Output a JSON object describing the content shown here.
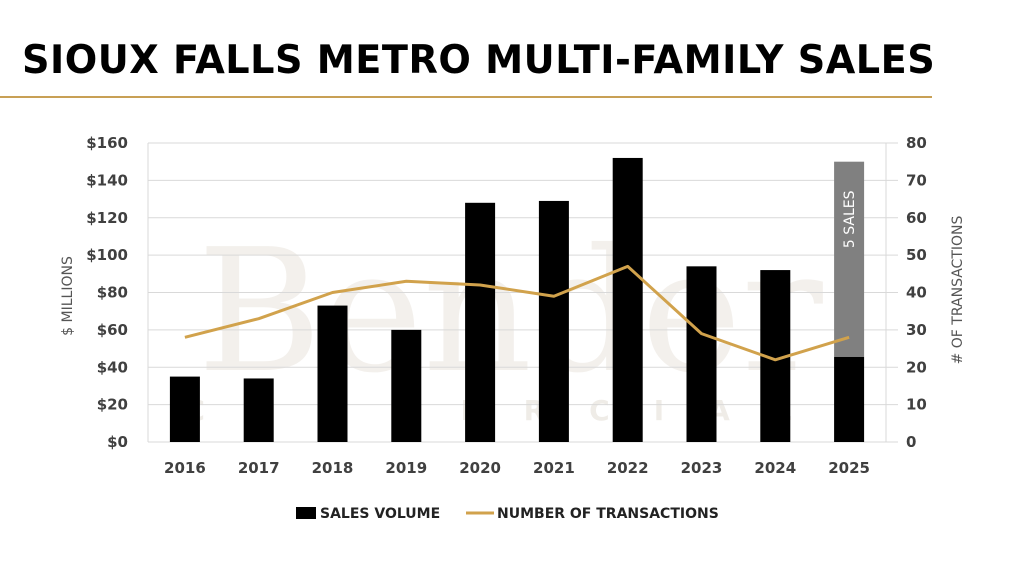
{
  "title": "SIOUX FALLS METRO MULTI-FAMILY SALES",
  "watermark": {
    "line1": "Bender",
    "line2": "COMMERCIAL"
  },
  "colors": {
    "bars": "#000000",
    "partial_bar": "#808080",
    "line": "#d1a24c",
    "rule": "#c8a055",
    "grid": "#d9d9d9"
  },
  "chart_data": {
    "type": "bar+line",
    "categories": [
      "2016",
      "2017",
      "2018",
      "2019",
      "2020",
      "2021",
      "2022",
      "2023",
      "2024",
      "2025"
    ],
    "series": [
      {
        "name": "SALES VOLUME",
        "type": "bar",
        "axis": "left",
        "values": [
          35,
          34,
          73,
          60,
          128,
          129,
          152,
          94,
          92,
          45.5
        ]
      },
      {
        "name": "NUMBER OF TRANSACTIONS",
        "type": "line",
        "axis": "right",
        "values": [
          28,
          33,
          40,
          43,
          42,
          39,
          47,
          29,
          22,
          28
        ]
      }
    ],
    "annotation_bar": {
      "category": "2025",
      "from": 45.5,
      "to": 150,
      "label": "5 SALES"
    },
    "ylabel": "$ MILLIONS",
    "ylabel_right": "# OF TRANSACTIONS",
    "ylim": [
      0,
      160
    ],
    "ylim_right": [
      0,
      80
    ],
    "yticks": [
      "$0",
      "$20",
      "$40",
      "$60",
      "$80",
      "$100",
      "$120",
      "$140",
      "$160"
    ],
    "yticks_right": [
      "0",
      "10",
      "20",
      "30",
      "40",
      "50",
      "60",
      "70",
      "80"
    ],
    "grid": true,
    "legend_position": "bottom",
    "legend": [
      "SALES VOLUME",
      "NUMBER OF TRANSACTIONS"
    ]
  }
}
